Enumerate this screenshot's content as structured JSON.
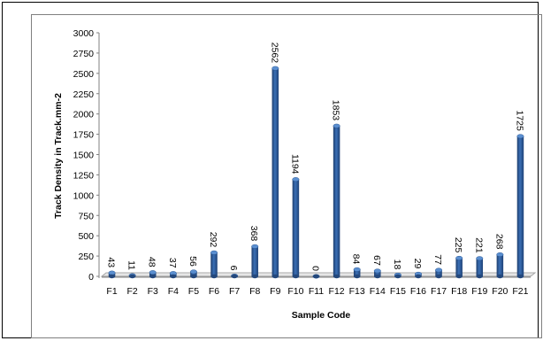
{
  "chart_data": {
    "type": "bar",
    "title": "",
    "xlabel": "Sample Code",
    "ylabel": "Track Density in Track.mm-2",
    "ylim": [
      0,
      3000
    ],
    "yticks": [
      0,
      250,
      500,
      750,
      1000,
      1250,
      1500,
      1750,
      2000,
      2250,
      2500,
      2750,
      3000
    ],
    "grid": false,
    "legend": "none",
    "bar_color": "#2f5f9e",
    "categories": [
      "F1",
      "F2",
      "F3",
      "F4",
      "F5",
      "F6",
      "F7",
      "F8",
      "F9",
      "F10",
      "F11",
      "F12",
      "F13",
      "F14",
      "F15",
      "F16",
      "F17",
      "F18",
      "F19",
      "F20",
      "F21"
    ],
    "values": [
      43,
      11,
      48,
      37,
      56,
      292,
      6,
      368,
      2562,
      1194,
      0,
      1853,
      84,
      67,
      18,
      29,
      77,
      225,
      221,
      268,
      1725
    ]
  }
}
